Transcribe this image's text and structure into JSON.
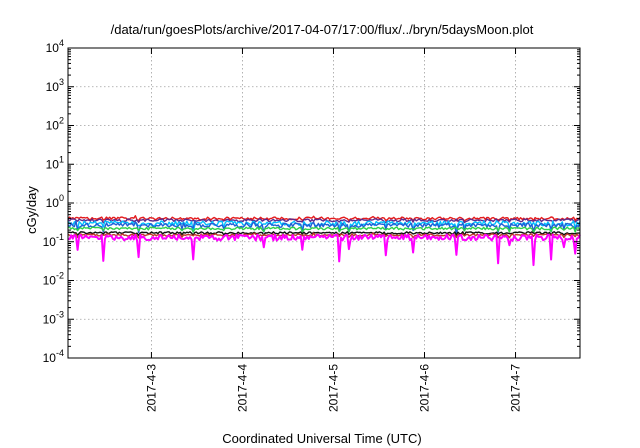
{
  "chart_data": {
    "type": "line",
    "title": "/data/run/goesPlots/archive/2017-04-07/17:00/flux/../bryn/5daysMoon.plot",
    "xlabel": "Coordinated Universal Time (UTC)",
    "ylabel": "cGy/day",
    "y_scale": "log",
    "ylim": [
      0.0001,
      10000
    ],
    "y_ticks": [
      {
        "base": "10",
        "exp": "-4",
        "value": 0.0001
      },
      {
        "base": "10",
        "exp": "-3",
        "value": 0.001
      },
      {
        "base": "10",
        "exp": "-2",
        "value": 0.01
      },
      {
        "base": "10",
        "exp": "-1",
        "value": 0.1
      },
      {
        "base": "10",
        "exp": "0",
        "value": 1
      },
      {
        "base": "10",
        "exp": "1",
        "value": 10
      },
      {
        "base": "10",
        "exp": "2",
        "value": 100
      },
      {
        "base": "10",
        "exp": "3",
        "value": 1000
      },
      {
        "base": "10",
        "exp": "4",
        "value": 10000
      }
    ],
    "xlim": [
      "2017-04-02 02:00",
      "2017-04-07 17:00"
    ],
    "x_ticks": [
      "2017-4-3",
      "2017-4-4",
      "2017-4-5",
      "2017-4-6",
      "2017-4-7"
    ],
    "grid": true,
    "legend": "none",
    "series": [
      {
        "color": "#e41a1c",
        "level": 0.4,
        "noise": 0.1,
        "dips": 0.1
      },
      {
        "color": "#5e2a8c",
        "level": 0.36,
        "noise": 0.1,
        "dips": 0.12
      },
      {
        "color": "#00bfff",
        "level": 0.3,
        "noise": 0.18,
        "dips": 0.4
      },
      {
        "color": "#1f5fd6",
        "level": 0.27,
        "noise": 0.16,
        "dips": 0.35
      },
      {
        "color": "#2ed14a",
        "level": 0.22,
        "noise": 0.1,
        "dips": 0.2
      },
      {
        "color": "#111111",
        "level": 0.17,
        "noise": 0.08,
        "dips": 0.15
      },
      {
        "color": "#c0392b",
        "level": 0.15,
        "noise": 0.08,
        "dips": 0.15
      },
      {
        "color": "#ff00ff",
        "level": 0.13,
        "noise": 0.22,
        "dips": 0.8
      }
    ]
  }
}
